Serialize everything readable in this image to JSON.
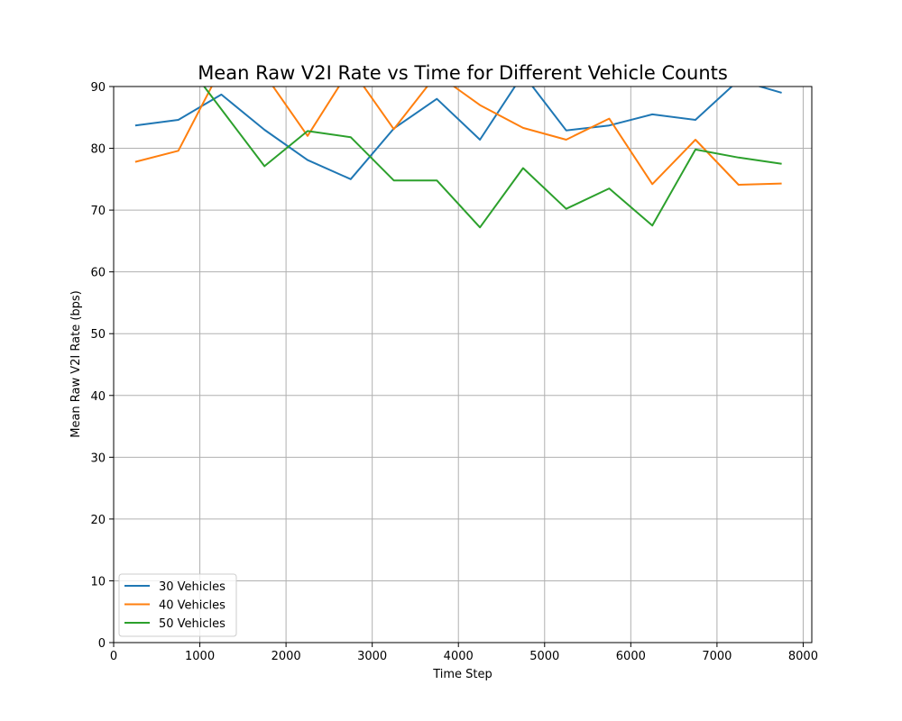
{
  "chart_data": {
    "type": "line",
    "title": "Mean Raw V2I Rate vs Time for Different Vehicle Counts",
    "xlabel": "Time Step",
    "ylabel": "Mean Raw V2I Rate (bps)",
    "xlim": [
      0,
      8100
    ],
    "ylim": [
      0,
      90
    ],
    "x_ticks": [
      0,
      1000,
      2000,
      3000,
      4000,
      5000,
      6000,
      7000,
      8000
    ],
    "y_ticks": [
      0,
      10,
      20,
      30,
      40,
      50,
      60,
      70,
      80,
      90
    ],
    "grid": true,
    "legend_position": "lower-left",
    "x": [
      250,
      750,
      1250,
      1750,
      2250,
      2750,
      3250,
      3750,
      4250,
      4750,
      5250,
      5750,
      6250,
      6750,
      7250,
      7750
    ],
    "series": [
      {
        "name": "30 Vehicles",
        "color": "#1f77b4",
        "values": [
          83.7,
          84.6,
          88.7,
          83.0,
          78.1,
          75.0,
          83.2,
          88.0,
          81.4,
          92.0,
          82.9,
          83.7,
          85.5,
          84.6,
          91.0,
          89.0
        ]
      },
      {
        "name": "40 Vehicles",
        "color": "#ff7f0e",
        "values": [
          77.8,
          79.6,
          93.0,
          92.0,
          82.0,
          93.0,
          83.1,
          92.0,
          87.0,
          83.3,
          81.4,
          84.8,
          74.2,
          81.4,
          74.1,
          74.3
        ]
      },
      {
        "name": "50 Vehicles",
        "color": "#2ca02c",
        "values": [
          null,
          null,
          87.0,
          77.1,
          82.8,
          81.8,
          74.8,
          74.8,
          67.2,
          76.8,
          70.2,
          73.5,
          67.5,
          79.8,
          78.5,
          77.5
        ]
      }
    ]
  }
}
